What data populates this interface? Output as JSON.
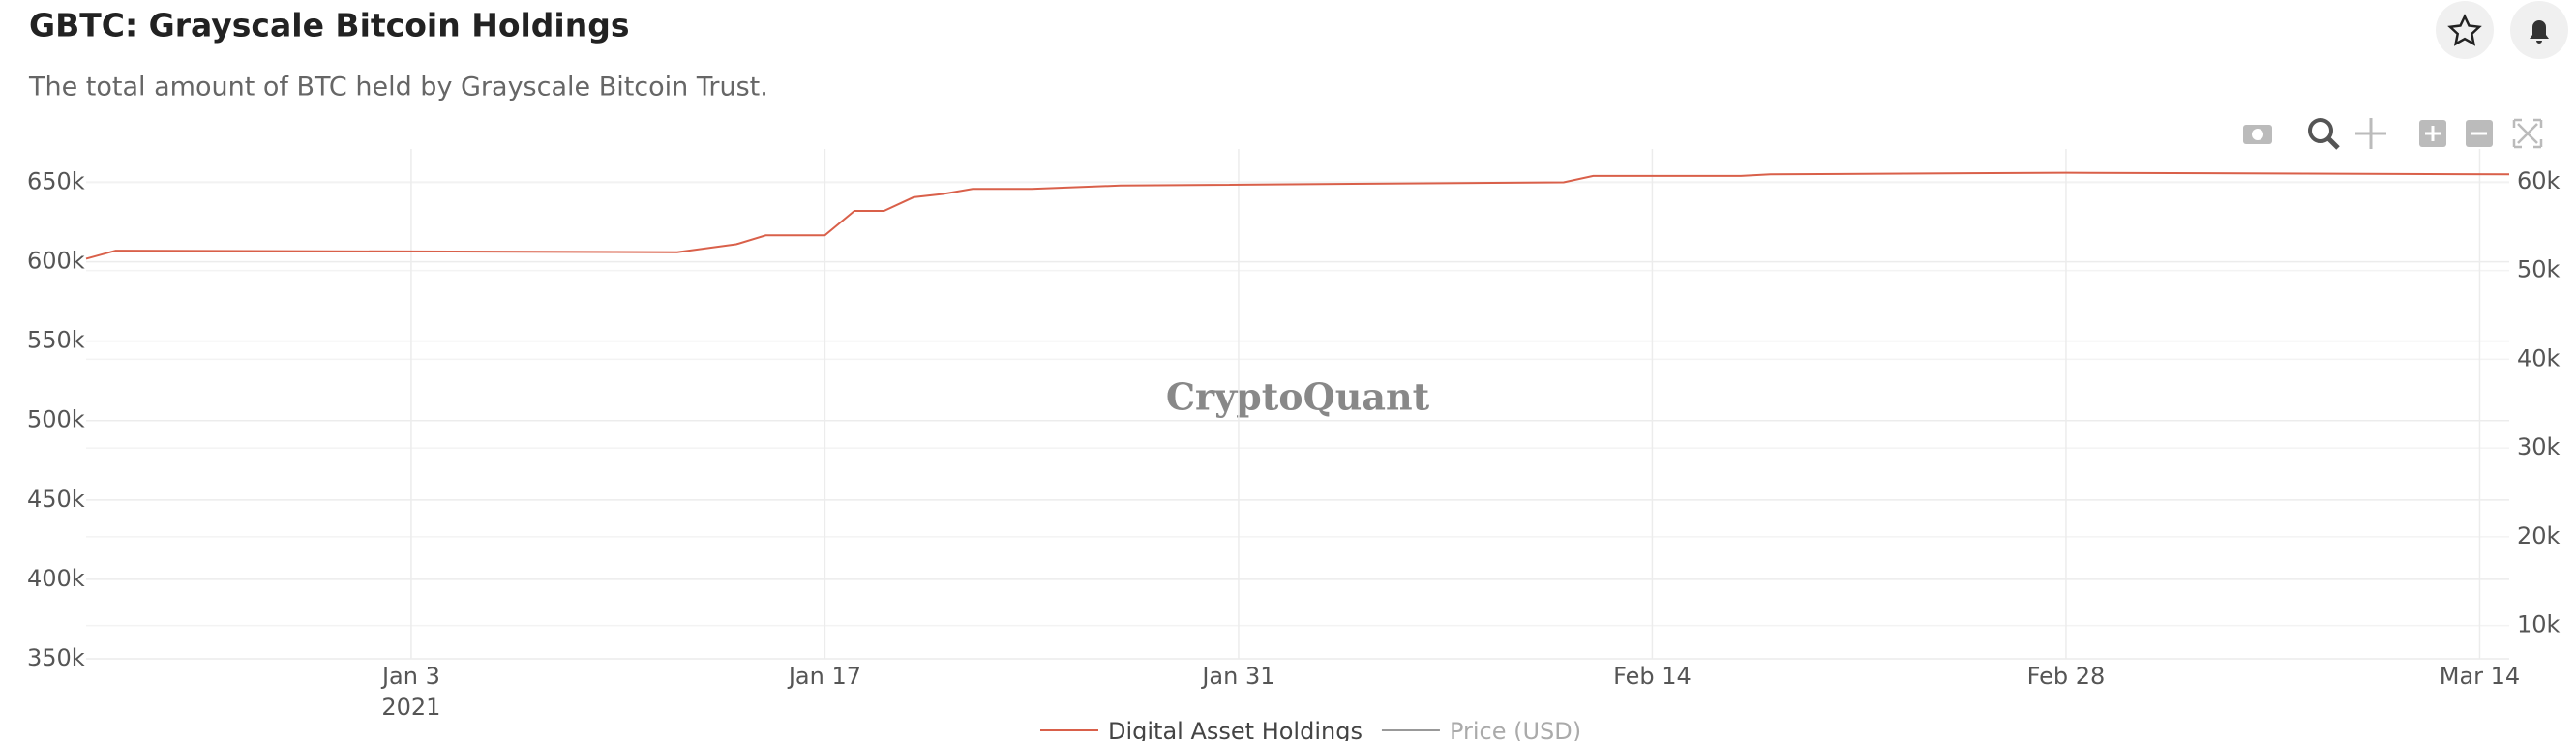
{
  "chart_data": {
    "type": "line",
    "title": "GBTC: Grayscale Bitcoin Holdings",
    "subtitle": "The total amount of BTC held by Grayscale Bitcoin Trust.",
    "watermark": "CryptoQuant",
    "x": [
      "2020-12-23",
      "2020-12-24",
      "2021-01-12",
      "2021-01-14",
      "2021-01-15",
      "2021-01-17",
      "2021-01-18",
      "2021-01-19",
      "2021-01-20",
      "2021-01-21",
      "2021-01-22",
      "2021-01-24",
      "2021-01-27",
      "2021-02-11",
      "2021-02-12",
      "2021-02-17",
      "2021-02-18",
      "2021-02-28",
      "2021-03-15"
    ],
    "series": [
      {
        "name": "Digital Asset Holdings",
        "color": "#d9604a",
        "values": [
          601900,
          607000,
          606000,
          611000,
          616600,
          616600,
          632000,
          632000,
          640600,
          642700,
          645900,
          645900,
          648000,
          650000,
          654000,
          654000,
          655000,
          656000,
          655000
        ]
      },
      {
        "name": "Price (USD)",
        "color": "#999999",
        "axis": "y2",
        "hidden": true,
        "values": [
          null,
          null,
          null,
          null,
          null,
          null,
          null,
          null,
          null,
          null,
          null,
          null,
          null,
          null,
          null,
          null,
          null,
          null,
          null
        ]
      }
    ],
    "xlim": [
      "2020-12-23",
      "2021-03-15"
    ],
    "xticks": [
      {
        "value": "2021-01-03",
        "label": "Jan 3",
        "sublabel": "2021"
      },
      {
        "value": "2021-01-17",
        "label": "Jan 17"
      },
      {
        "value": "2021-01-31",
        "label": "Jan 31"
      },
      {
        "value": "2021-02-14",
        "label": "Feb 14"
      },
      {
        "value": "2021-02-28",
        "label": "Feb 28"
      },
      {
        "value": "2021-03-14",
        "label": "Mar 14"
      }
    ],
    "ylim": [
      350000,
      671000
    ],
    "yticks": [
      {
        "value": 350000,
        "label": "350k"
      },
      {
        "value": 400000,
        "label": "400k"
      },
      {
        "value": 450000,
        "label": "450k"
      },
      {
        "value": 500000,
        "label": "500k"
      },
      {
        "value": 550000,
        "label": "550k"
      },
      {
        "value": 600000,
        "label": "600k"
      },
      {
        "value": 650000,
        "label": "650k"
      }
    ],
    "y2lim": [
      6250,
      63700
    ],
    "y2ticks": [
      {
        "value": 10000,
        "label": "10k"
      },
      {
        "value": 20000,
        "label": "20k"
      },
      {
        "value": 30000,
        "label": "30k"
      },
      {
        "value": 40000,
        "label": "40k"
      },
      {
        "value": 50000,
        "label": "50k"
      },
      {
        "value": 60000,
        "label": "60k"
      }
    ],
    "grid": true
  }
}
